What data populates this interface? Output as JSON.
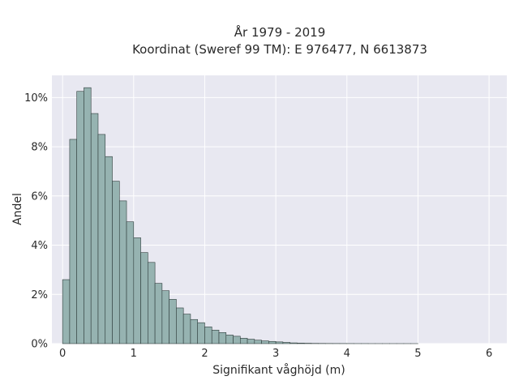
{
  "chart_data": {
    "type": "bar",
    "title_line1": "År 1979 - 2019",
    "title_line2": "Koordinat (Sweref 99 TM): E 976477, N 6613873",
    "xlabel": "Signifikant våghöjd (m)",
    "ylabel": "Andel",
    "xlim": [
      -0.15,
      6.25
    ],
    "ylim": [
      0,
      10.9
    ],
    "x_ticks": [
      0,
      1,
      2,
      3,
      4,
      5,
      6
    ],
    "x_tick_labels": [
      "0",
      "1",
      "2",
      "3",
      "4",
      "5",
      "6"
    ],
    "y_ticks": [
      0,
      2,
      4,
      6,
      8,
      10
    ],
    "y_tick_labels": [
      "0%",
      "2%",
      "4%",
      "6%",
      "8%",
      "10%"
    ],
    "grid": true,
    "bin_width": 0.1,
    "bin_starts": [
      0.0,
      0.1,
      0.2,
      0.3,
      0.4,
      0.5,
      0.6,
      0.7,
      0.8,
      0.9,
      1.0,
      1.1,
      1.2,
      1.3,
      1.4,
      1.5,
      1.6,
      1.7,
      1.8,
      1.9,
      2.0,
      2.1,
      2.2,
      2.3,
      2.4,
      2.5,
      2.6,
      2.7,
      2.8,
      2.9,
      3.0,
      3.1,
      3.2,
      3.3,
      3.4,
      3.5,
      3.6,
      3.7,
      3.8,
      3.9,
      4.0,
      4.1,
      4.2,
      4.3,
      4.4,
      4.5,
      4.6,
      4.7,
      4.8,
      4.9
    ],
    "values": [
      2.6,
      8.3,
      10.25,
      10.4,
      9.35,
      8.5,
      7.6,
      6.6,
      5.8,
      4.95,
      4.3,
      3.7,
      3.3,
      2.45,
      2.15,
      1.8,
      1.45,
      1.2,
      0.98,
      0.85,
      0.68,
      0.55,
      0.45,
      0.35,
      0.3,
      0.22,
      0.18,
      0.14,
      0.11,
      0.09,
      0.07,
      0.05,
      0.03,
      0.02,
      0.015,
      0.01,
      0.008,
      0.006,
      0.005,
      0.004,
      0.003,
      0.002,
      0.002,
      0.001,
      0.001,
      0.001,
      0.001,
      0.001,
      0.001,
      0.0005
    ],
    "colors": {
      "plot_bg": "#e8e8f1",
      "grid": "#ffffff",
      "bar_fill": "#96b3b1",
      "bar_stroke": "#2f3d3c"
    }
  }
}
